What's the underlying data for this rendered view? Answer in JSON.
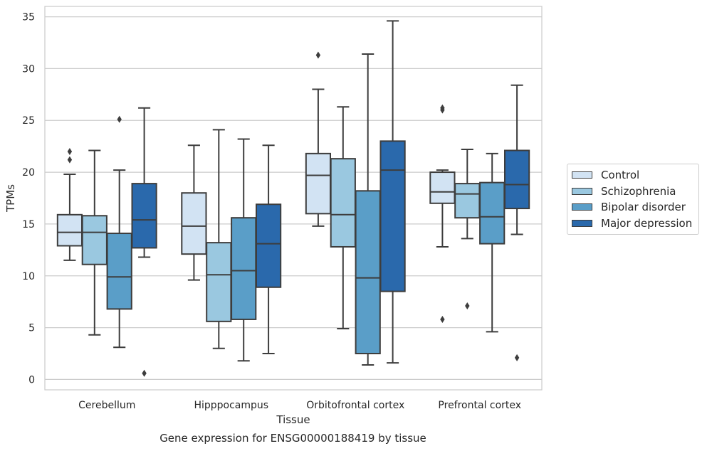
{
  "caption": "Gene expression for ENSG00000188419 by tissue",
  "chart_data": {
    "type": "box",
    "xlabel": "Tissue",
    "ylabel": "TPMs",
    "ylim": [
      -1,
      36
    ],
    "yticks": [
      0,
      5,
      10,
      15,
      20,
      25,
      30,
      35
    ],
    "grid": true,
    "legend_position": "right",
    "categories": [
      "Cerebellum",
      "Hipppocampus",
      "Orbitofrontal cortex",
      "Prefrontal cortex"
    ],
    "series": [
      {
        "name": "Control",
        "color": "#d2e3f3",
        "boxes": [
          {
            "whisker_low": 11.5,
            "q1": 12.9,
            "median": 14.2,
            "q3": 15.9,
            "whisker_high": 19.8,
            "outliers": [
              21.2,
              22.0
            ]
          },
          {
            "whisker_low": 9.6,
            "q1": 12.1,
            "median": 14.8,
            "q3": 18.0,
            "whisker_high": 22.6,
            "outliers": []
          },
          {
            "whisker_low": 14.8,
            "q1": 16.0,
            "median": 19.7,
            "q3": 21.8,
            "whisker_high": 28.0,
            "outliers": [
              31.3
            ]
          },
          {
            "whisker_low": 12.8,
            "q1": 17.0,
            "median": 18.1,
            "q3": 20.0,
            "whisker_high": 20.2,
            "outliers": [
              5.8,
              26.0,
              26.2
            ]
          }
        ]
      },
      {
        "name": "Schizophrenia",
        "color": "#9ac8e0",
        "boxes": [
          {
            "whisker_low": 4.3,
            "q1": 11.1,
            "median": 14.2,
            "q3": 15.8,
            "whisker_high": 22.1,
            "outliers": []
          },
          {
            "whisker_low": 3.0,
            "q1": 5.6,
            "median": 10.1,
            "q3": 13.2,
            "whisker_high": 24.1,
            "outliers": []
          },
          {
            "whisker_low": 4.9,
            "q1": 12.8,
            "median": 15.9,
            "q3": 21.3,
            "whisker_high": 26.3,
            "outliers": []
          },
          {
            "whisker_low": 13.6,
            "q1": 15.6,
            "median": 17.9,
            "q3": 18.9,
            "whisker_high": 22.2,
            "outliers": [
              7.1
            ]
          }
        ]
      },
      {
        "name": "Bipolar disorder",
        "color": "#5a9ec8",
        "boxes": [
          {
            "whisker_low": 3.1,
            "q1": 6.8,
            "median": 9.9,
            "q3": 14.1,
            "whisker_high": 20.2,
            "outliers": [
              25.1
            ]
          },
          {
            "whisker_low": 1.8,
            "q1": 5.8,
            "median": 10.5,
            "q3": 15.6,
            "whisker_high": 23.2,
            "outliers": []
          },
          {
            "whisker_low": 1.4,
            "q1": 2.5,
            "median": 9.8,
            "q3": 18.2,
            "whisker_high": 31.4,
            "outliers": []
          },
          {
            "whisker_low": 4.6,
            "q1": 13.1,
            "median": 15.7,
            "q3": 19.0,
            "whisker_high": 21.8,
            "outliers": []
          }
        ]
      },
      {
        "name": "Major depression",
        "color": "#2a69ac",
        "boxes": [
          {
            "whisker_low": 11.8,
            "q1": 12.7,
            "median": 15.4,
            "q3": 18.9,
            "whisker_high": 26.2,
            "outliers": [
              0.6
            ]
          },
          {
            "whisker_low": 2.5,
            "q1": 8.9,
            "median": 13.1,
            "q3": 16.9,
            "whisker_high": 22.6,
            "outliers": []
          },
          {
            "whisker_low": 1.6,
            "q1": 8.5,
            "median": 20.2,
            "q3": 23.0,
            "whisker_high": 34.6,
            "outliers": []
          },
          {
            "whisker_low": 14.0,
            "q1": 16.5,
            "median": 18.8,
            "q3": 22.1,
            "whisker_high": 28.4,
            "outliers": [
              2.1
            ]
          }
        ]
      }
    ]
  }
}
